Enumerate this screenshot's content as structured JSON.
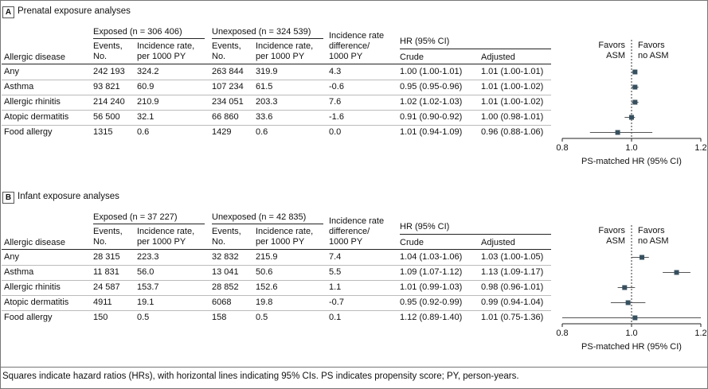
{
  "panels": [
    {
      "label": "A",
      "title": "Prenatal exposure analyses",
      "exposed_header": "Exposed (n = 306 406)",
      "unexposed_header": "Unexposed (n = 324 539)",
      "rows": [
        {
          "disease": "Any",
          "exp_events": "242 193",
          "exp_rate": "324.2",
          "unexp_events": "263 844",
          "unexp_rate": "319.9",
          "diff": "4.3",
          "crude": "1.00 (1.00-1.01)",
          "adjusted": "1.01 (1.00-1.01)"
        },
        {
          "disease": "Asthma",
          "exp_events": "93 821",
          "exp_rate": "60.9",
          "unexp_events": "107 234",
          "unexp_rate": "61.5",
          "diff": "-0.6",
          "crude": "0.95 (0.95-0.96)",
          "adjusted": "1.01 (1.00-1.02)"
        },
        {
          "disease": "Allergic rhinitis",
          "exp_events": "214 240",
          "exp_rate": "210.9",
          "unexp_events": "234 051",
          "unexp_rate": "203.3",
          "diff": "7.6",
          "crude": "1.02 (1.02-1.03)",
          "adjusted": "1.01 (1.00-1.02)"
        },
        {
          "disease": "Atopic dermatitis",
          "exp_events": "56 500",
          "exp_rate": "32.1",
          "unexp_events": "66 860",
          "unexp_rate": "33.6",
          "diff": "-1.6",
          "crude": "0.91 (0.90-0.92)",
          "adjusted": "1.00 (0.98-1.01)"
        },
        {
          "disease": "Food allergy",
          "exp_events": "1315",
          "exp_rate": "0.6",
          "unexp_events": "1429",
          "unexp_rate": "0.6",
          "diff": "0.0",
          "crude": "1.01 (0.94-1.09)",
          "adjusted": "0.96 (0.88-1.06)"
        }
      ]
    },
    {
      "label": "B",
      "title": "Infant exposure analyses",
      "exposed_header": "Exposed (n = 37 227)",
      "unexposed_header": "Unexposed (n = 42 835)",
      "rows": [
        {
          "disease": "Any",
          "exp_events": "28 315",
          "exp_rate": "223.3",
          "unexp_events": "32 832",
          "unexp_rate": "215.9",
          "diff": "7.4",
          "crude": "1.04 (1.03-1.06)",
          "adjusted": "1.03 (1.00-1.05)"
        },
        {
          "disease": "Asthma",
          "exp_events": "11 831",
          "exp_rate": "56.0",
          "unexp_events": "13 041",
          "unexp_rate": "50.6",
          "diff": "5.5",
          "crude": "1.09 (1.07-1.12)",
          "adjusted": "1.13 (1.09-1.17)"
        },
        {
          "disease": "Allergic rhinitis",
          "exp_events": "24 587",
          "exp_rate": "153.7",
          "unexp_events": "28 852",
          "unexp_rate": "152.6",
          "diff": "1.1",
          "crude": "1.01 (0.99-1.03)",
          "adjusted": "0.98 (0.96-1.01)"
        },
        {
          "disease": "Atopic dermatitis",
          "exp_events": "4911",
          "exp_rate": "19.1",
          "unexp_events": "6068",
          "unexp_rate": "19.8",
          "diff": "-0.7",
          "crude": "0.95 (0.92-0.99)",
          "adjusted": "0.99 (0.94-1.04)"
        },
        {
          "disease": "Food allergy",
          "exp_events": "150",
          "exp_rate": "0.5",
          "unexp_events": "158",
          "unexp_rate": "0.5",
          "diff": "0.1",
          "crude": "1.12 (0.89-1.40)",
          "adjusted": "1.01 (0.75-1.36)"
        }
      ]
    }
  ],
  "headers": {
    "allergic_disease": "Allergic disease",
    "events": [
      "Events,",
      "No."
    ],
    "incidence": [
      "Incidence rate,",
      "per 1000 PY"
    ],
    "diff": [
      "Incidence rate",
      "difference/",
      "1000 PY"
    ],
    "hr": "HR (95% CI)",
    "crude": "Crude",
    "adjusted": "Adjusted"
  },
  "chart_data": [
    {
      "type": "scatter",
      "panel": "A",
      "xlabel": "PS-matched HR (95% CI)",
      "xlim": [
        0.8,
        1.2
      ],
      "xticks": [
        "0.8",
        "1.0",
        "1.2"
      ],
      "reference": 1.0,
      "favors_left": [
        "Favors",
        "ASM"
      ],
      "favors_right": [
        "Favors",
        "no ASM"
      ],
      "categories": [
        "Any",
        "Asthma",
        "Allergic rhinitis",
        "Atopic dermatitis",
        "Food allergy"
      ],
      "hr": [
        1.01,
        1.01,
        1.01,
        1.0,
        0.96
      ],
      "ci_low": [
        1.0,
        1.0,
        1.0,
        0.98,
        0.88
      ],
      "ci_high": [
        1.01,
        1.02,
        1.02,
        1.01,
        1.06
      ]
    },
    {
      "type": "scatter",
      "panel": "B",
      "xlabel": "PS-matched HR (95% CI)",
      "xlim": [
        0.8,
        1.2
      ],
      "xticks": [
        "0.8",
        "1.0",
        "1.2"
      ],
      "reference": 1.0,
      "favors_left": [
        "Favors",
        "ASM"
      ],
      "favors_right": [
        "Favors",
        "no ASM"
      ],
      "categories": [
        "Any",
        "Asthma",
        "Allergic rhinitis",
        "Atopic dermatitis",
        "Food allergy"
      ],
      "hr": [
        1.03,
        1.13,
        0.98,
        0.99,
        1.01
      ],
      "ci_low": [
        1.0,
        1.09,
        0.96,
        0.94,
        0.75
      ],
      "ci_high": [
        1.05,
        1.17,
        1.01,
        1.04,
        1.36
      ]
    }
  ],
  "colors": {
    "marker": "#37505f",
    "ci_line": "#555555"
  },
  "caption": "Squares indicate hazard ratios (HRs), with horizontal lines indicating 95% CIs. PS indicates propensity score; PY, person-years."
}
